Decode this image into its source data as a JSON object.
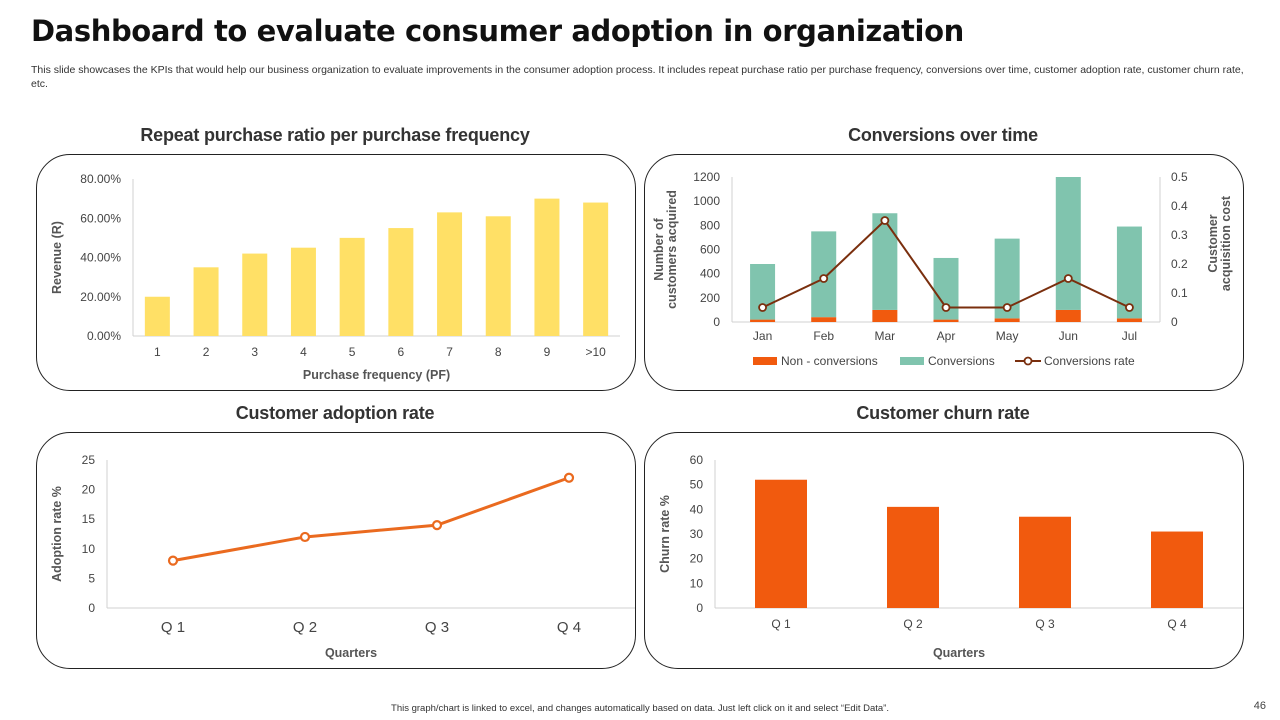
{
  "title": "Dashboard to evaluate consumer adoption in organization",
  "description": "This slide showcases the KPIs that would help our business organization to evaluate improvements in the consumer adoption process. It includes repeat purchase ratio per purchase frequency, conversions over time, customer adoption rate, customer churn rate, etc.",
  "footer_note": "This graph/chart is linked to excel, and changes automatically based on data. Just left click on it and select “Edit Data”.",
  "page_number": "46",
  "colors": {
    "yellow": "#FFE066",
    "orange": "#F15A0E",
    "teal": "#80C4AE",
    "brown": "#7A2F0E",
    "line_orange": "#EA6A1F"
  },
  "chart_data": [
    {
      "type": "bar",
      "title": "Repeat purchase ratio per purchase frequency",
      "xlabel": "Purchase frequency (PF)",
      "ylabel": "Revenue (R)",
      "categories": [
        "1",
        "2",
        "3",
        "4",
        "5",
        "6",
        "7",
        "8",
        "9",
        ">10"
      ],
      "values": [
        0.2,
        0.35,
        0.42,
        0.45,
        0.5,
        0.55,
        0.63,
        0.61,
        0.7,
        0.68
      ],
      "ylim": [
        0,
        0.8
      ],
      "yticks": [
        "0.00%",
        "20.00%",
        "40.00%",
        "60.00%",
        "80.00%"
      ],
      "grid": false
    },
    {
      "type": "bar",
      "title": "Conversions over time",
      "ylabel": "Number of customers acquired",
      "ylabel_lines": [
        "Number of",
        "customers acquired"
      ],
      "y2label": "Customer acquisition cost",
      "y2label_lines": [
        "Customer",
        "acquisition cost"
      ],
      "categories": [
        "Jan",
        "Feb",
        "Mar",
        "Apr",
        "May",
        "Jun",
        "Jul"
      ],
      "ylim": [
        0,
        1200
      ],
      "yticks": [
        "0",
        "200",
        "400",
        "600",
        "800",
        "1000",
        "1200"
      ],
      "y2lim": [
        0,
        0.5
      ],
      "y2ticks": [
        "0",
        "0.1",
        "0.2",
        "0.3",
        "0.4",
        "0.5"
      ],
      "stacked": true,
      "series": [
        {
          "name": "Non - conversions",
          "values": [
            20,
            40,
            100,
            20,
            30,
            100,
            30
          ]
        },
        {
          "name": "Conversions",
          "values": [
            460,
            710,
            800,
            510,
            660,
            1100,
            760
          ]
        },
        {
          "name": "Conversions rate",
          "type": "line",
          "axis": "right",
          "values": [
            0.05,
            0.15,
            0.35,
            0.05,
            0.05,
            0.15,
            0.05
          ]
        }
      ],
      "legend": "bottom",
      "grid": false
    },
    {
      "type": "line",
      "title": "Customer adoption rate",
      "xlabel": "Quarters",
      "ylabel": "Adoption rate %",
      "categories": [
        "Q 1",
        "Q 2",
        "Q 3",
        "Q 4"
      ],
      "values": [
        8,
        12,
        14,
        22
      ],
      "ylim": [
        0,
        25
      ],
      "yticks": [
        "0",
        "5",
        "10",
        "15",
        "20",
        "25"
      ],
      "grid": false
    },
    {
      "type": "bar",
      "title": "Customer churn rate",
      "xlabel": "Quarters",
      "ylabel": "Churn rate %",
      "categories": [
        "Q 1",
        "Q 2",
        "Q 3",
        "Q 4"
      ],
      "values": [
        52,
        41,
        37,
        31
      ],
      "ylim": [
        0,
        60
      ],
      "yticks": [
        "0",
        "10",
        "20",
        "30",
        "40",
        "50",
        "60"
      ],
      "grid": false
    }
  ]
}
